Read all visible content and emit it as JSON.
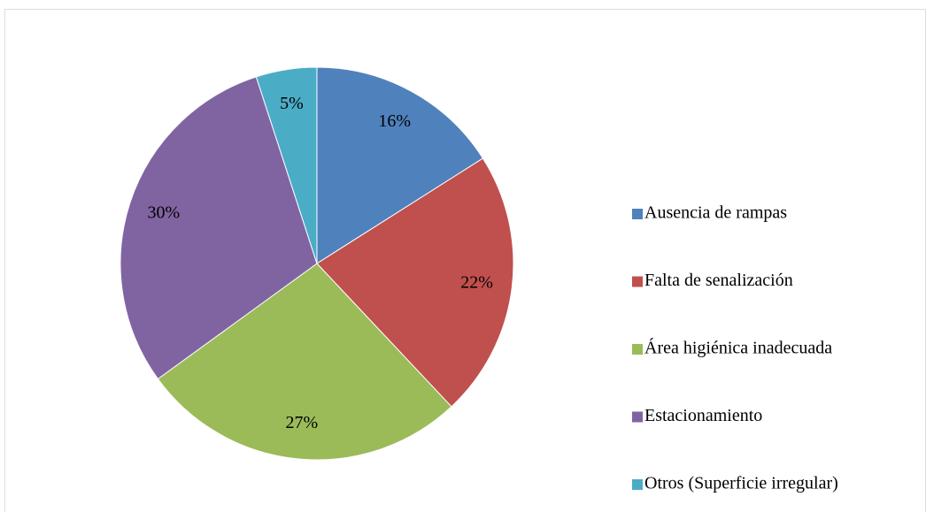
{
  "chart_data": {
    "type": "pie",
    "categories": [
      "Ausencia de rampas",
      "Falta de senalización",
      "Área higiénica inadecuada",
      "Estacionamiento",
      "Otros (Superficie irregular)"
    ],
    "values": [
      16,
      22,
      27,
      30,
      5
    ],
    "value_labels": [
      "16%",
      "22%",
      "27%",
      "30%",
      "5%"
    ],
    "colors": [
      "#4f81bd",
      "#c0504d",
      "#9bbb59",
      "#8064a2",
      "#4bacc6"
    ],
    "legend": "right"
  }
}
